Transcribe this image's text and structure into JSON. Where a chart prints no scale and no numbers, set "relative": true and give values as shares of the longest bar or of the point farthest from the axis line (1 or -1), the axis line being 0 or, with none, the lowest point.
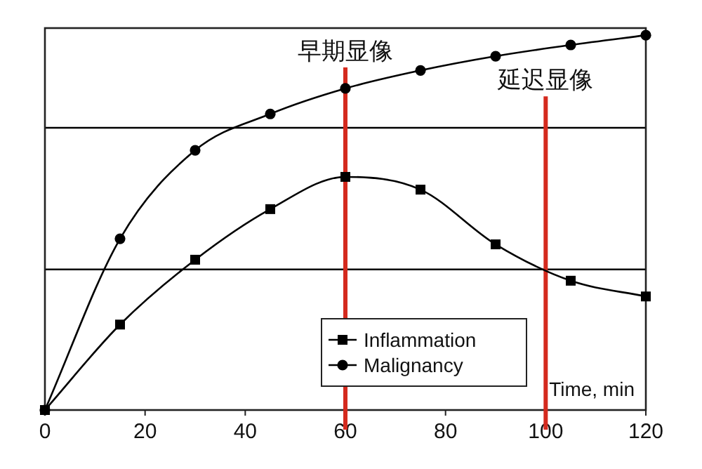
{
  "chart_data": {
    "type": "line",
    "relative": true,
    "xlabel": "Time, min",
    "x": [
      0,
      15,
      30,
      45,
      60,
      75,
      90,
      105,
      120
    ],
    "xlim": [
      0,
      120
    ],
    "xticks": [
      0,
      20,
      40,
      60,
      80,
      100,
      120
    ],
    "legend": "bottom",
    "grid": false,
    "line_style": "solid",
    "series": [
      {
        "name": "Inflammation",
        "color": "#000000",
        "marker": "square",
        "values": [
          0,
          0.228,
          0.401,
          0.536,
          0.622,
          0.588,
          0.442,
          0.345,
          0.303
        ]
      },
      {
        "name": "Malignancy",
        "color": "#000000",
        "marker": "circle",
        "values": [
          0,
          0.457,
          0.693,
          0.79,
          0.858,
          0.906,
          0.944,
          0.974,
          1
        ]
      }
    ],
    "ref_lines": [
      {
        "axis": "y",
        "value": 0.375,
        "color": "#000000"
      },
      {
        "axis": "y",
        "value": 0.753,
        "color": "#000000"
      },
      {
        "axis": "x",
        "value": 60,
        "label": "早期显像",
        "color": "#d42a1e"
      },
      {
        "axis": "x",
        "value": 100,
        "label": "延迟显像",
        "color": "#d42a1e"
      }
    ]
  }
}
